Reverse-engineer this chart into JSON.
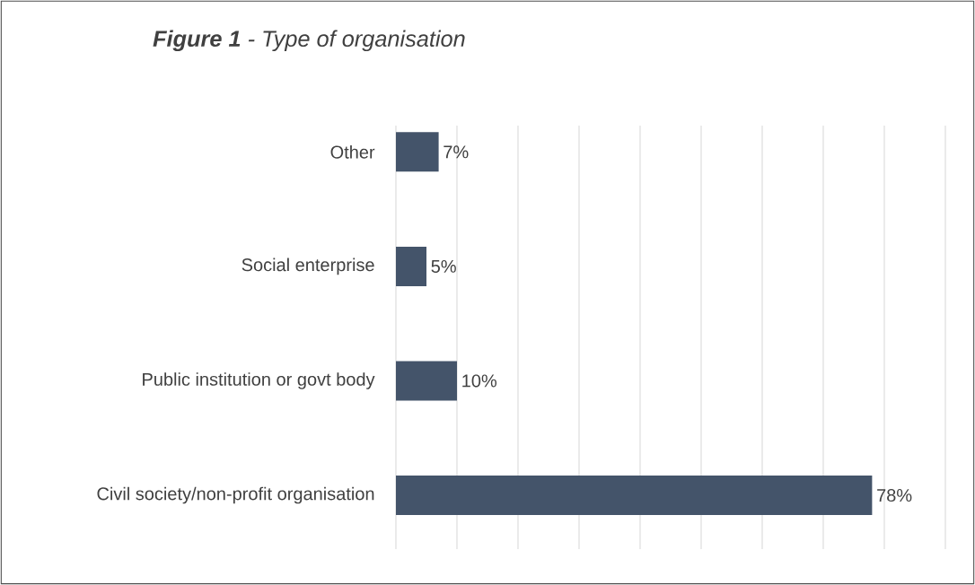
{
  "chart_data": {
    "type": "bar",
    "orientation": "horizontal",
    "title": "**Figure 1** - Type of organisation",
    "categories": [
      "Other",
      "Social enterprise",
      "Public institution or govt body",
      "Civil society/non-profit organisation"
    ],
    "values": [
      7,
      5,
      10,
      78
    ],
    "value_labels": [
      "7%",
      "5%",
      "10%",
      "78%"
    ],
    "color": "#44546a",
    "xlim": [
      0,
      90
    ],
    "xticks": [
      {
        "value": 0,
        "label": null
      },
      {
        "value": 10,
        "label": null
      },
      {
        "value": 20,
        "label": null
      },
      {
        "value": 30,
        "label": null
      },
      {
        "value": 40,
        "label": null
      },
      {
        "value": 50,
        "label": null
      },
      {
        "value": 60,
        "label": null
      },
      {
        "value": 70,
        "label": null
      },
      {
        "value": 80,
        "label": null
      },
      {
        "value": 90,
        "label": null
      }
    ],
    "grid": "x"
  }
}
